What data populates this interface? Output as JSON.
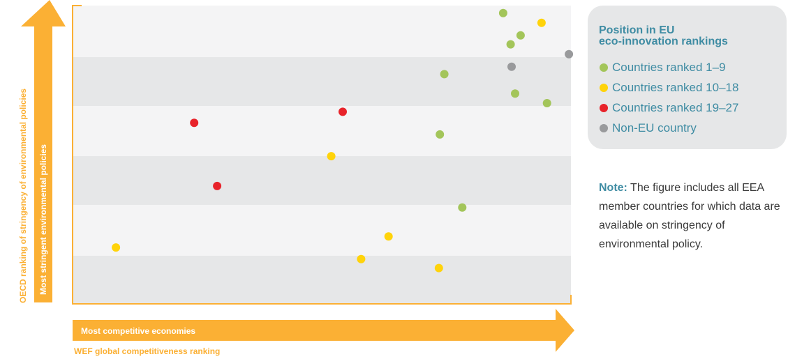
{
  "chart_data": {
    "type": "scatter",
    "title": "",
    "xlabel": "WEF global competitiveness ranking",
    "x_arrow_label": "Most competitive economies",
    "ylabel": "OECD ranking of stringency of environmental policies",
    "y_arrow_label": "Most stringent environmental policies",
    "xlim": [
      0,
      100
    ],
    "ylim": [
      0,
      100
    ],
    "grid": "horizontal bands",
    "legend_position": "top-right",
    "legend_title": [
      "Position in EU",
      "eco-innovation rankings"
    ],
    "series": [
      {
        "name": "Countries ranked 1–9",
        "color": "#a3c55a",
        "points": [
          [
            86.4,
            97.5
          ],
          [
            89.9,
            90.0
          ],
          [
            87.9,
            87.0
          ],
          [
            74.6,
            77.0
          ],
          [
            88.8,
            70.5
          ],
          [
            95.2,
            67.3
          ],
          [
            73.7,
            56.8
          ],
          [
            78.2,
            32.3
          ]
        ]
      },
      {
        "name": "Countries ranked 10–18",
        "color": "#ffd30a",
        "points": [
          [
            94.1,
            94.2
          ],
          [
            51.9,
            49.5
          ],
          [
            8.7,
            18.9
          ],
          [
            63.4,
            22.6
          ],
          [
            57.9,
            15.0
          ],
          [
            73.5,
            12.0
          ]
        ]
      },
      {
        "name": "Countries ranked 19–27",
        "color": "#e8232a",
        "points": [
          [
            24.4,
            60.7
          ],
          [
            54.2,
            64.4
          ],
          [
            29.0,
            39.5
          ]
        ]
      },
      {
        "name": "Non-EU country",
        "color": "#999a9c",
        "points": [
          [
            99.6,
            83.7
          ],
          [
            88.1,
            79.5
          ]
        ]
      }
    ]
  },
  "note": {
    "label": "Note:",
    "text": " The figure includes all EEA member countries for which data are available on stringency of environmental policy."
  }
}
